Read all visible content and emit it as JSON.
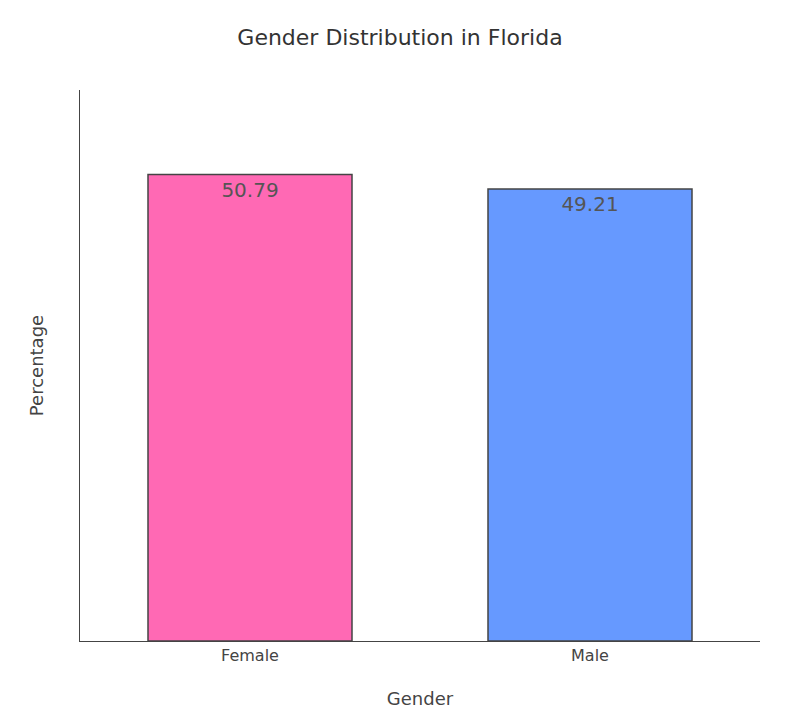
{
  "chart_data": {
    "type": "bar",
    "title": "Gender Distribution in Florida",
    "xlabel": "Gender",
    "ylabel": "Percentage",
    "categories": [
      "Female",
      "Male"
    ],
    "values": [
      50.79,
      49.21
    ],
    "colors": [
      "#FF69B4",
      "#6699FF"
    ],
    "ylim": [
      0,
      60
    ],
    "grid": false,
    "data_labels": true,
    "tick_labels": "x"
  }
}
